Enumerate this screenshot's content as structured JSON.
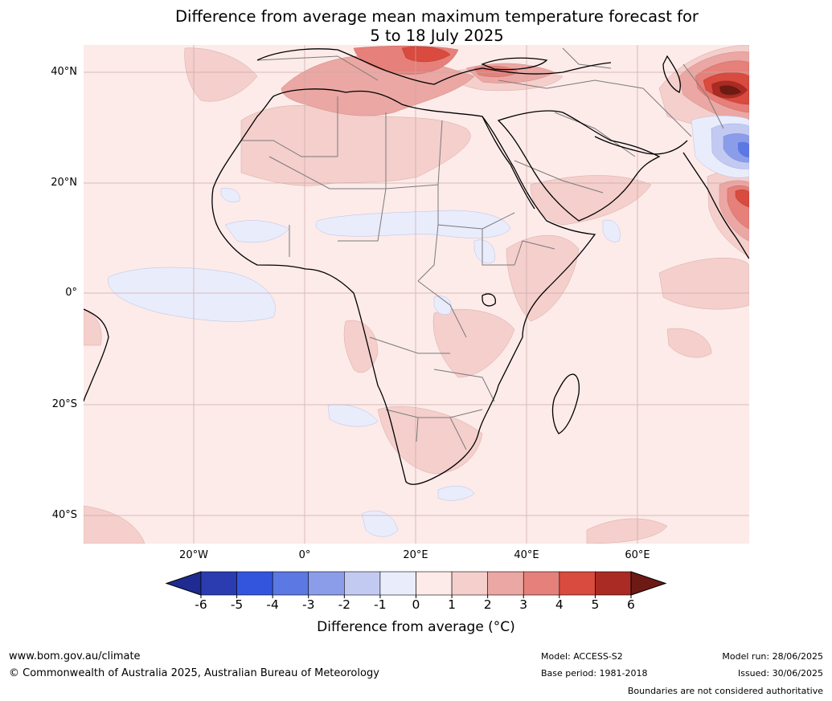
{
  "title": {
    "line1": "Difference from average mean maximum temperature forecast for",
    "line2": "5 to 18 July 2025"
  },
  "map": {
    "region": "Africa and surrounding region",
    "lat_labels": [
      "40°N",
      "20°N",
      "0°",
      "20°S",
      "40°S"
    ],
    "lon_labels": [
      "20°W",
      "0°",
      "20°E",
      "40°E",
      "60°E"
    ],
    "background_anomaly": "0 to 1",
    "notable_features": [
      {
        "area": "eastern Mediterranean / Balkans",
        "anomaly": "3 to 5"
      },
      {
        "area": "Iran / Central Asia",
        "anomaly": "5 to 6+"
      },
      {
        "area": "Pakistan / northwest India",
        "anomaly": "-1 to -4"
      },
      {
        "area": "western India",
        "anomaly": "3 to 5"
      },
      {
        "area": "Sahel band",
        "anomaly": "-1 to 0"
      },
      {
        "area": "equatorial Atlantic",
        "anomaly": "-1 to 0"
      }
    ]
  },
  "colorbar": {
    "ticks": [
      "-6",
      "-5",
      "-4",
      "-3",
      "-2",
      "-1",
      "0",
      "1",
      "2",
      "3",
      "4",
      "5",
      "6"
    ],
    "colors": [
      "#1f2b91",
      "#2a3cb0",
      "#3355dd",
      "#5c78e2",
      "#8b9de9",
      "#c3caf2",
      "#e9ecfb",
      "#fcebe9",
      "#f4cfcc",
      "#eba7a3",
      "#e5807a",
      "#d94a3f",
      "#a92b23",
      "#6e1a14"
    ],
    "label": "Difference from average (°C)"
  },
  "footer": {
    "url": "www.bom.gov.au/climate",
    "copyright": "© Commonwealth of Australia 2025, Australian Bureau of Meteorology",
    "model": "Model: ACCESS-S2",
    "base_period": "Base period: 1981-2018",
    "model_run": "Model run: 28/06/2025",
    "issued": "Issued: 30/06/2025",
    "disclaimer": "Boundaries are not considered authoritative"
  }
}
